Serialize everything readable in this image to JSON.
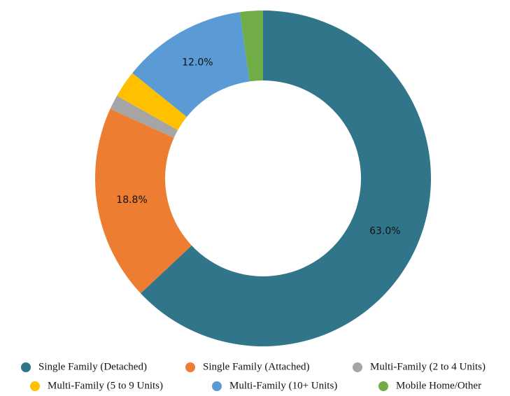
{
  "chart_data": {
    "type": "donut",
    "categories": [
      "Single Family (Detached)",
      "Single Family (Attached)",
      "Multi-Family (2 to 4 Units)",
      "Multi-Family (5 to 9 Units)",
      "Multi-Family (10+ Units)",
      "Mobile Home/Other"
    ],
    "values": [
      63.0,
      18.8,
      1.4,
      2.6,
      12.0,
      2.2
    ],
    "value_labels": [
      "63.0%",
      "18.8%",
      null,
      null,
      "12.0%",
      null
    ],
    "colors": [
      "#31758a",
      "#ed7d31",
      "#a5a5a5",
      "#ffc000",
      "#5b9bd5",
      "#70ad47"
    ],
    "legend": "bottom"
  }
}
